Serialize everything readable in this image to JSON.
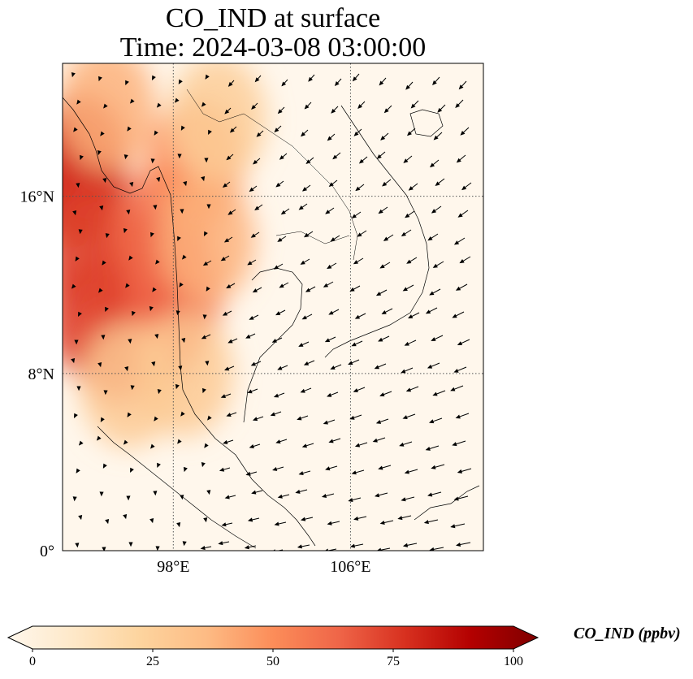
{
  "title": {
    "line1": "CO_IND at surface",
    "line2": "Time: 2024-03-08 03:00:00"
  },
  "map": {
    "lon_range": [
      93,
      112
    ],
    "lat_range": [
      0,
      22
    ],
    "lat_ticks": [
      {
        "value": 0,
        "label": "0°"
      },
      {
        "value": 8,
        "label": "8°N"
      },
      {
        "value": 16,
        "label": "16°N"
      }
    ],
    "lon_ticks": [
      {
        "value": 98,
        "label": "98°E"
      },
      {
        "value": 106,
        "label": "106°E"
      }
    ],
    "gridlines": true,
    "gridline_style": "dotted"
  },
  "colorbar": {
    "title": "CO_IND (ppbv)",
    "min": 0,
    "max": 100,
    "extend": "both",
    "cmap": "OrRd",
    "stops": [
      "#fff7ec",
      "#fee8c8",
      "#fdd49e",
      "#fdbb84",
      "#fc8d59",
      "#ef6548",
      "#d7301f",
      "#b30000",
      "#7f0000"
    ],
    "ticks": [
      {
        "value": 0,
        "label": "0"
      },
      {
        "value": 25,
        "label": "25"
      },
      {
        "value": 50,
        "label": "50"
      },
      {
        "value": 75,
        "label": "75"
      },
      {
        "value": 100,
        "label": "100"
      }
    ]
  },
  "plumes": [
    {
      "lon": 93.6,
      "lat": 16.5,
      "value": 85
    },
    {
      "lon": 93.8,
      "lat": 17.8,
      "value": 75
    },
    {
      "lon": 94.3,
      "lat": 13.5,
      "value": 70
    },
    {
      "lon": 94.5,
      "lat": 10.5,
      "value": 72
    },
    {
      "lon": 95.5,
      "lat": 9.5,
      "value": 68
    },
    {
      "lon": 96.5,
      "lat": 12.5,
      "value": 70
    },
    {
      "lon": 97.0,
      "lat": 10.0,
      "value": 72
    },
    {
      "lon": 97.5,
      "lat": 14.5,
      "value": 60
    },
    {
      "lon": 98.0,
      "lat": 11.5,
      "value": 62
    },
    {
      "lon": 99.0,
      "lat": 17.5,
      "value": 50
    },
    {
      "lon": 99.5,
      "lat": 14.0,
      "value": 40
    },
    {
      "lon": 95.0,
      "lat": 20.0,
      "value": 40
    },
    {
      "lon": 100.0,
      "lat": 19.5,
      "value": 28
    },
    {
      "lon": 96.0,
      "lat": 7.5,
      "value": 30
    },
    {
      "lon": 98.5,
      "lat": 8.0,
      "value": 30
    }
  ]
}
